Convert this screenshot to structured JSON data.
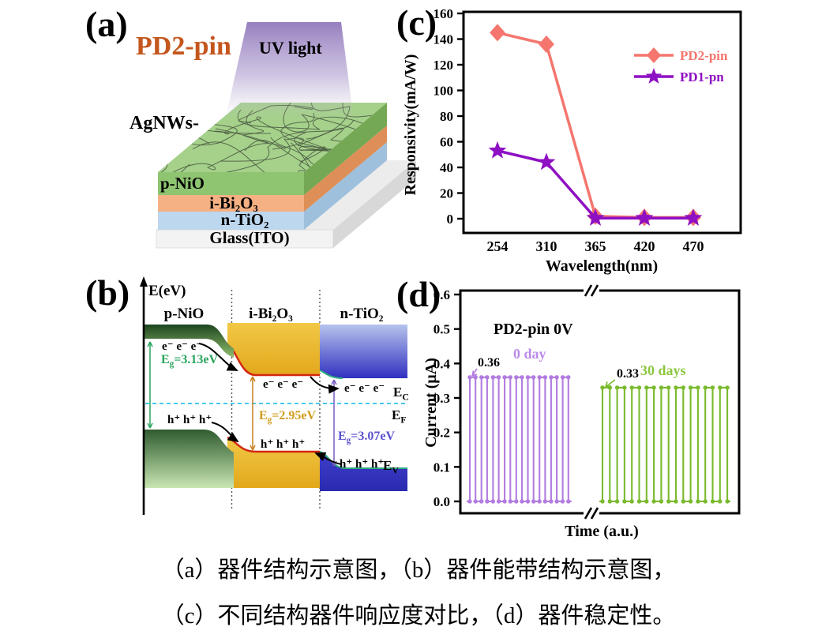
{
  "panels": {
    "a": {
      "label": "(a)",
      "title": "PD2-pin",
      "title_color": "#c4561d",
      "uv_label": "UV light",
      "agnws_label": "AgNWs-",
      "layers": [
        {
          "name": "p-NiO",
          "front": "#8fc571",
          "side": "#74a855",
          "top": "#a5d18b"
        },
        {
          "name": "i-Bi₂O₃",
          "front": "#f5b183",
          "side": "#de8f57"
        },
        {
          "name": "n-TiO₂",
          "front": "#bdd7ee",
          "side": "#9fc0dc"
        },
        {
          "name": "Glass(ITO)",
          "front": "#f3f3f3",
          "side": "#d8d8d8",
          "top": "#ececec"
        }
      ],
      "beam_color": "#8c74b8"
    },
    "b": {
      "label": "(b)",
      "axis_label": "E(eV)",
      "regions": [
        "p-NiO",
        "i-Bi₂O₃",
        "n-TiO₂"
      ],
      "electrons": "e⁻ e⁻ e⁻",
      "holes": "h⁺ h⁺ h⁺",
      "gaps": [
        {
          "pre": "E",
          "sub": "g",
          "post": "=3.13eV",
          "color": "#2aa45c"
        },
        {
          "pre": "E",
          "sub": "g",
          "post": "=2.95eV",
          "color": "#cf9c1c"
        },
        {
          "pre": "E",
          "sub": "g",
          "post": "=3.07eV",
          "color": "#5b51cf"
        }
      ],
      "levels": [
        {
          "pre": "E",
          "sub": "C"
        },
        {
          "pre": "E",
          "sub": "F"
        },
        {
          "pre": "E",
          "sub": "V"
        }
      ],
      "fermi_line_color": "#49c9f2",
      "band_edge_color": "#d22711"
    },
    "c": {
      "label": "(c)"
    },
    "d": {
      "label": "(d)"
    }
  },
  "chart_data": [
    {
      "id": "responsivity-comparison",
      "type": "line",
      "xlabel": "Wavelength(nm)",
      "ylabel": "Responsivity(mA/W)",
      "categories": [
        "254",
        "310",
        "365",
        "420",
        "470"
      ],
      "ylim": [
        0,
        160
      ],
      "yticks": [
        0,
        20,
        40,
        60,
        80,
        100,
        120,
        140,
        160
      ],
      "grid": false,
      "legend_position": "upper-right",
      "series": [
        {
          "name": "PD2-pin",
          "marker": "diamond",
          "color": "#f4766e",
          "values": [
            145,
            136,
            2,
            1,
            1
          ]
        },
        {
          "name": "PD1-pn",
          "marker": "star",
          "color": "#8e10c3",
          "values": [
            53,
            44,
            0.5,
            0.5,
            0.5
          ]
        }
      ]
    },
    {
      "id": "stability",
      "type": "pulse",
      "annotation_title": "PD2-pin 0V",
      "xlabel": "Time (a.u.)",
      "ylabel": "Current (μA)",
      "ylim": [
        0,
        0.6
      ],
      "yticks": [
        "0.0",
        "0.1",
        "0.2",
        "0.3",
        "0.4",
        "0.5",
        "0.6"
      ],
      "axis_break": true,
      "series": [
        {
          "name": "0 day",
          "annotation": "0.36",
          "high": 0.36,
          "low": 0.0,
          "cycles": 9,
          "color": "#b27ce0",
          "label_color": "#ba8be8"
        },
        {
          "name": "30 days",
          "annotation": "0.33",
          "high": 0.33,
          "low": 0.0,
          "cycles": 9,
          "color": "#7aba2e",
          "label_color": "#8cc63f"
        }
      ]
    }
  ],
  "caption": {
    "line1": "（a）器件结构示意图，（b）器件能带结构示意图，",
    "line2": "（c）不同结构器件响应度对比，（d）器件稳定性。"
  }
}
